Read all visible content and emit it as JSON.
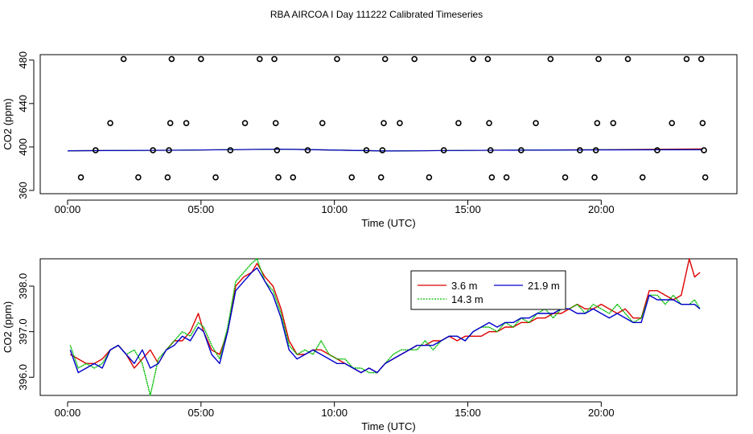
{
  "page_title": "RBA AIRCOA I  Day 111222  Calibrated Timeseries",
  "chart_data": [
    {
      "type": "scatter+line",
      "title": "",
      "xlabel": "Time (UTC)",
      "ylabel": "CO2 (ppm)",
      "x_unit": "hours",
      "xlim": [
        0,
        24
      ],
      "ylim": [
        357,
        485
      ],
      "xticks": [
        0,
        5,
        10,
        15,
        20
      ],
      "xticklabels": [
        "00:00",
        "05:00",
        "10:00",
        "15:00",
        "20:00"
      ],
      "yticks": [
        360,
        400,
        440,
        480
      ],
      "yticklabels": [
        "360",
        "400",
        "440",
        "480"
      ],
      "calibration_points": [
        {
          "x": 0.5,
          "y": 372
        },
        {
          "x": 1.05,
          "y": 397
        },
        {
          "x": 1.6,
          "y": 422
        },
        {
          "x": 2.1,
          "y": 481
        },
        {
          "x": 2.65,
          "y": 372
        },
        {
          "x": 3.2,
          "y": 397
        },
        {
          "x": 3.75,
          "y": 372
        },
        {
          "x": 3.8,
          "y": 397
        },
        {
          "x": 3.85,
          "y": 422
        },
        {
          "x": 3.9,
          "y": 481
        },
        {
          "x": 4.45,
          "y": 422
        },
        {
          "x": 5.0,
          "y": 481
        },
        {
          "x": 5.55,
          "y": 372
        },
        {
          "x": 6.1,
          "y": 397
        },
        {
          "x": 6.65,
          "y": 422
        },
        {
          "x": 7.2,
          "y": 481
        },
        {
          "x": 7.75,
          "y": 481
        },
        {
          "x": 7.8,
          "y": 422
        },
        {
          "x": 7.85,
          "y": 397
        },
        {
          "x": 7.9,
          "y": 372
        },
        {
          "x": 8.45,
          "y": 372
        },
        {
          "x": 9.0,
          "y": 397
        },
        {
          "x": 9.55,
          "y": 422
        },
        {
          "x": 10.1,
          "y": 481
        },
        {
          "x": 10.65,
          "y": 372
        },
        {
          "x": 11.2,
          "y": 397
        },
        {
          "x": 11.75,
          "y": 372
        },
        {
          "x": 11.8,
          "y": 397
        },
        {
          "x": 11.85,
          "y": 422
        },
        {
          "x": 11.9,
          "y": 481
        },
        {
          "x": 12.45,
          "y": 422
        },
        {
          "x": 13.0,
          "y": 481
        },
        {
          "x": 13.55,
          "y": 372
        },
        {
          "x": 14.1,
          "y": 397
        },
        {
          "x": 14.65,
          "y": 422
        },
        {
          "x": 15.2,
          "y": 481
        },
        {
          "x": 15.75,
          "y": 481
        },
        {
          "x": 15.8,
          "y": 422
        },
        {
          "x": 15.85,
          "y": 397
        },
        {
          "x": 15.9,
          "y": 372
        },
        {
          "x": 16.45,
          "y": 372
        },
        {
          "x": 17.0,
          "y": 397
        },
        {
          "x": 17.55,
          "y": 422
        },
        {
          "x": 18.1,
          "y": 481
        },
        {
          "x": 18.65,
          "y": 372
        },
        {
          "x": 19.2,
          "y": 397
        },
        {
          "x": 19.75,
          "y": 372
        },
        {
          "x": 19.8,
          "y": 397
        },
        {
          "x": 19.85,
          "y": 422
        },
        {
          "x": 19.9,
          "y": 481
        },
        {
          "x": 20.45,
          "y": 422
        },
        {
          "x": 21.0,
          "y": 481
        },
        {
          "x": 21.55,
          "y": 372
        },
        {
          "x": 22.1,
          "y": 397
        },
        {
          "x": 22.65,
          "y": 422
        },
        {
          "x": 23.2,
          "y": 481
        },
        {
          "x": 23.75,
          "y": 481
        },
        {
          "x": 23.8,
          "y": 422
        },
        {
          "x": 23.85,
          "y": 397
        },
        {
          "x": 23.9,
          "y": 372
        }
      ],
      "baseline_series": [
        {
          "name": "3.6 m",
          "color": "#dd0000",
          "x": [
            0,
            4,
            8,
            12,
            16,
            20,
            23.8
          ],
          "y": [
            396.5,
            397,
            398,
            396.3,
            397,
            397.5,
            398.3
          ]
        },
        {
          "name": "14.3 m",
          "color": "#00bb00",
          "x": [
            0,
            4,
            8,
            12,
            16,
            20,
            23.8
          ],
          "y": [
            396.5,
            397,
            398,
            396.3,
            397,
            397.4,
            397.6
          ]
        },
        {
          "name": "21.9 m",
          "color": "#0000cc",
          "x": [
            0,
            4,
            8,
            12,
            16,
            20,
            23.8
          ],
          "y": [
            396.5,
            397,
            398,
            396.3,
            397,
            397.3,
            397.5
          ]
        }
      ]
    },
    {
      "type": "line",
      "title": "",
      "xlabel": "Time (UTC)",
      "ylabel": "CO2 (ppm)",
      "x_unit": "hours",
      "xlim": [
        0,
        24
      ],
      "ylim": [
        395.6,
        398.6
      ],
      "xticks": [
        0,
        5,
        10,
        15,
        20
      ],
      "xticklabels": [
        "00:00",
        "05:00",
        "10:00",
        "15:00",
        "20:00"
      ],
      "yticks": [
        396.0,
        397.0,
        398.0
      ],
      "yticklabels": [
        "396.0",
        "397.0",
        "398.0"
      ],
      "legend_position": "top-right",
      "series": [
        {
          "name": "3.6 m",
          "color": "#dd0000",
          "x": [
            0.1,
            0.4,
            0.7,
            1.0,
            1.3,
            1.6,
            1.9,
            2.2,
            2.5,
            2.8,
            3.1,
            3.4,
            3.7,
            4.0,
            4.3,
            4.6,
            4.9,
            5.1,
            5.4,
            5.7,
            6.0,
            6.3,
            6.6,
            6.9,
            7.1,
            7.4,
            7.7,
            8.0,
            8.3,
            8.6,
            8.9,
            9.2,
            9.5,
            9.8,
            10.1,
            10.4,
            10.7,
            11.0,
            11.3,
            11.6,
            11.9,
            12.2,
            12.5,
            12.8,
            13.1,
            13.4,
            13.7,
            14.0,
            14.3,
            14.6,
            14.9,
            15.2,
            15.5,
            15.8,
            16.1,
            16.4,
            16.7,
            17.0,
            17.3,
            17.6,
            17.9,
            18.2,
            18.5,
            18.8,
            19.1,
            19.4,
            19.7,
            20.0,
            20.3,
            20.6,
            20.9,
            21.2,
            21.5,
            21.8,
            22.1,
            22.4,
            22.7,
            23.0,
            23.3,
            23.5,
            23.7
          ],
          "y": [
            396.5,
            396.4,
            396.3,
            396.3,
            396.4,
            396.6,
            396.7,
            396.5,
            396.2,
            396.4,
            396.6,
            396.3,
            396.6,
            396.8,
            396.8,
            397.0,
            397.4,
            397.0,
            396.6,
            396.5,
            397.0,
            398.0,
            398.2,
            398.3,
            398.5,
            398.2,
            398.0,
            397.5,
            396.8,
            396.5,
            396.5,
            396.6,
            396.6,
            396.5,
            396.4,
            396.3,
            396.2,
            396.1,
            396.2,
            396.1,
            396.3,
            396.4,
            396.5,
            396.6,
            396.7,
            396.7,
            396.8,
            396.8,
            396.9,
            396.8,
            396.9,
            396.9,
            396.9,
            397.0,
            397.0,
            397.1,
            397.1,
            397.2,
            397.2,
            397.3,
            397.3,
            397.4,
            397.4,
            397.5,
            397.6,
            397.5,
            397.5,
            397.6,
            397.5,
            397.4,
            397.5,
            397.3,
            397.3,
            397.9,
            397.9,
            397.8,
            397.7,
            397.8,
            398.6,
            398.2,
            398.3
          ]
        },
        {
          "name": "14.3 m",
          "color": "#00bb00",
          "x": [
            0.1,
            0.4,
            0.7,
            1.0,
            1.3,
            1.6,
            1.9,
            2.2,
            2.5,
            2.8,
            3.1,
            3.4,
            3.7,
            4.0,
            4.3,
            4.6,
            4.9,
            5.1,
            5.4,
            5.7,
            6.0,
            6.3,
            6.6,
            6.9,
            7.1,
            7.4,
            7.7,
            8.0,
            8.3,
            8.6,
            8.9,
            9.2,
            9.5,
            9.8,
            10.1,
            10.4,
            10.7,
            11.0,
            11.3,
            11.6,
            11.9,
            12.2,
            12.5,
            12.8,
            13.1,
            13.4,
            13.7,
            14.0,
            14.3,
            14.6,
            14.9,
            15.2,
            15.5,
            15.8,
            16.1,
            16.4,
            16.7,
            17.0,
            17.3,
            17.6,
            17.9,
            18.2,
            18.5,
            18.8,
            19.1,
            19.4,
            19.7,
            20.0,
            20.3,
            20.6,
            20.9,
            21.2,
            21.5,
            21.8,
            22.1,
            22.4,
            22.7,
            23.0,
            23.3,
            23.5,
            23.7
          ],
          "y": [
            396.7,
            396.2,
            396.3,
            396.2,
            396.3,
            396.6,
            396.7,
            396.5,
            396.6,
            396.3,
            395.6,
            396.4,
            396.6,
            396.8,
            397.0,
            396.9,
            397.2,
            397.1,
            396.7,
            396.4,
            397.1,
            398.1,
            398.3,
            398.5,
            398.6,
            398.1,
            397.9,
            397.4,
            396.7,
            396.5,
            396.6,
            396.5,
            396.8,
            396.5,
            396.4,
            396.4,
            396.2,
            396.2,
            396.1,
            396.1,
            396.3,
            396.5,
            396.6,
            396.6,
            396.6,
            396.8,
            396.6,
            396.8,
            396.9,
            396.9,
            396.8,
            397.0,
            397.1,
            397.1,
            397.0,
            397.2,
            397.1,
            397.3,
            397.2,
            397.4,
            397.5,
            397.3,
            397.5,
            397.5,
            397.6,
            397.4,
            397.6,
            397.5,
            397.4,
            397.6,
            397.4,
            397.2,
            397.3,
            397.8,
            397.8,
            397.6,
            397.8,
            397.6,
            397.6,
            397.7,
            397.5
          ]
        },
        {
          "name": "21.9 m",
          "color": "#0000cc",
          "x": [
            0.1,
            0.4,
            0.7,
            1.0,
            1.3,
            1.6,
            1.9,
            2.2,
            2.5,
            2.8,
            3.1,
            3.4,
            3.7,
            4.0,
            4.3,
            4.6,
            4.9,
            5.1,
            5.4,
            5.7,
            6.0,
            6.3,
            6.6,
            6.9,
            7.1,
            7.4,
            7.7,
            8.0,
            8.3,
            8.6,
            8.9,
            9.2,
            9.5,
            9.8,
            10.1,
            10.4,
            10.7,
            11.0,
            11.3,
            11.6,
            11.9,
            12.2,
            12.5,
            12.8,
            13.1,
            13.4,
            13.7,
            14.0,
            14.3,
            14.6,
            14.9,
            15.2,
            15.5,
            15.8,
            16.1,
            16.4,
            16.7,
            17.0,
            17.3,
            17.6,
            17.9,
            18.2,
            18.5,
            18.8,
            19.1,
            19.4,
            19.7,
            20.0,
            20.3,
            20.6,
            20.9,
            21.2,
            21.5,
            21.8,
            22.1,
            22.4,
            22.7,
            23.0,
            23.3,
            23.5,
            23.7
          ],
          "y": [
            396.6,
            396.1,
            396.2,
            396.3,
            396.2,
            396.6,
            396.7,
            396.5,
            396.3,
            396.6,
            396.2,
            396.3,
            396.6,
            396.7,
            396.9,
            396.8,
            397.1,
            397.0,
            396.5,
            396.3,
            397.0,
            397.9,
            398.1,
            398.3,
            398.4,
            398.1,
            397.8,
            397.3,
            396.6,
            396.4,
            396.5,
            396.6,
            396.5,
            396.4,
            396.3,
            396.3,
            396.2,
            396.1,
            396.2,
            396.1,
            396.3,
            396.4,
            396.5,
            396.6,
            396.7,
            396.7,
            396.7,
            396.8,
            396.9,
            396.9,
            396.8,
            397.0,
            397.1,
            397.2,
            397.1,
            397.2,
            397.2,
            397.3,
            397.3,
            397.4,
            397.4,
            397.4,
            397.5,
            397.5,
            397.4,
            397.4,
            397.5,
            397.4,
            397.3,
            397.4,
            397.3,
            397.2,
            397.2,
            397.8,
            397.7,
            397.7,
            397.7,
            397.6,
            397.6,
            397.6,
            397.5
          ]
        }
      ]
    }
  ]
}
